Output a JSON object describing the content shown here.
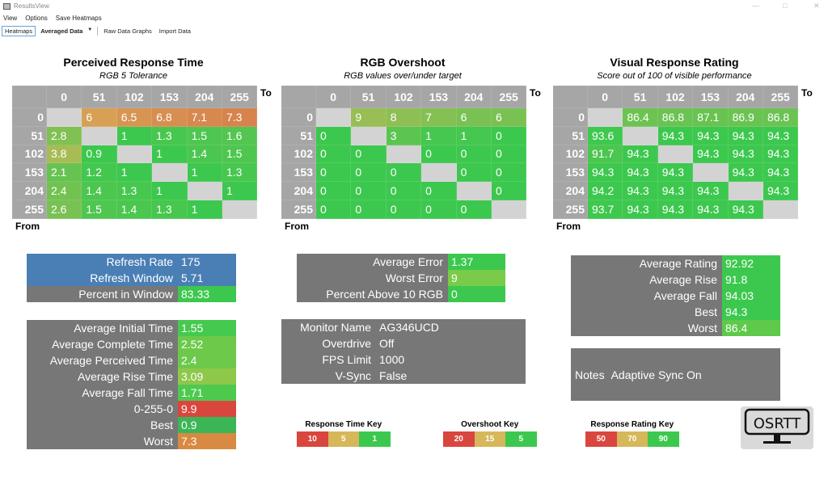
{
  "window": {
    "title": "ResultsView",
    "controls": [
      "—",
      "□",
      "✕"
    ]
  },
  "menu": [
    "View",
    "Options",
    "Save Heatmaps"
  ],
  "toolbar": {
    "heatmaps": "Heatmaps",
    "data_select": "Averaged Data",
    "raw": "Raw Data Graphs",
    "import": "Import Data"
  },
  "axis": {
    "to": "To",
    "from": "From",
    "levels": [
      "0",
      "51",
      "102",
      "153",
      "204",
      "255"
    ]
  },
  "heatmaps": [
    {
      "title": "Perceived Response Time",
      "subtitle": "RGB 5 Tolerance",
      "stops": [
        [
          1,
          "#3cc84e"
        ],
        [
          5,
          "#d6b75a"
        ],
        [
          10,
          "#d9463e"
        ]
      ],
      "values": [
        [
          null,
          "6",
          "6.5",
          "6.8",
          "7.1",
          "7.3"
        ],
        [
          "2.8",
          null,
          "1",
          "1.3",
          "1.5",
          "1.6"
        ],
        [
          "3.8",
          "0.9",
          null,
          "1",
          "1.4",
          "1.5"
        ],
        [
          "2.1",
          "1.2",
          "1",
          null,
          "1",
          "1.3"
        ],
        [
          "2.4",
          "1.4",
          "1.3",
          "1",
          null,
          "1"
        ],
        [
          "2.6",
          "1.5",
          "1.4",
          "1.3",
          "1",
          null
        ]
      ]
    },
    {
      "title": "RGB Overshoot",
      "subtitle": "RGB values over/under target",
      "stops": [
        [
          0,
          "#3cc84e"
        ],
        [
          15,
          "#d6b75a"
        ],
        [
          20,
          "#d9463e"
        ]
      ],
      "values": [
        [
          null,
          "9",
          "8",
          "7",
          "6",
          "6"
        ],
        [
          "0",
          null,
          "3",
          "1",
          "1",
          "0"
        ],
        [
          "0",
          "0",
          null,
          "0",
          "0",
          "0"
        ],
        [
          "0",
          "0",
          "0",
          null,
          "0",
          "0"
        ],
        [
          "0",
          "0",
          "0",
          "0",
          null,
          "0"
        ],
        [
          "0",
          "0",
          "0",
          "0",
          "0",
          null
        ]
      ]
    },
    {
      "title": "Visual Response Rating",
      "subtitle": "Score out of 100 of visible performance",
      "stops": [
        [
          50,
          "#d9463e"
        ],
        [
          70,
          "#d6b75a"
        ],
        [
          94,
          "#3cc84e"
        ]
      ],
      "values": [
        [
          null,
          "86.4",
          "86.8",
          "87.1",
          "86.9",
          "86.8"
        ],
        [
          "93.6",
          null,
          "94.3",
          "94.3",
          "94.3",
          "94.3"
        ],
        [
          "91.7",
          "94.3",
          null,
          "94.3",
          "94.3",
          "94.3"
        ],
        [
          "94.3",
          "94.3",
          "94.3",
          null,
          "94.3",
          "94.3"
        ],
        [
          "94.2",
          "94.3",
          "94.3",
          "94.3",
          null,
          "94.3"
        ],
        [
          "93.7",
          "94.3",
          "94.3",
          "94.3",
          "94.3",
          null
        ]
      ]
    }
  ],
  "refresh": [
    {
      "label": "Refresh Rate",
      "value": "175",
      "label_color": "#4a7fb5",
      "value_color": "#4a7fb5"
    },
    {
      "label": "Refresh Window",
      "value": "5.71",
      "label_color": "#4a7fb5",
      "value_color": "#4a7fb5"
    },
    {
      "label": "Percent in Window",
      "value": "83.33",
      "label_color": "#777777",
      "value_color": "#3cc84e"
    }
  ],
  "response_stats": [
    {
      "label": "Average Initial Time",
      "value": "1.55",
      "value_color": "#45c94e"
    },
    {
      "label": "Average Complete Time",
      "value": "2.52",
      "value_color": "#6cc94a"
    },
    {
      "label": "Average Perceived Time",
      "value": "2.4",
      "value_color": "#6cc94a"
    },
    {
      "label": "Average Rise Time",
      "value": "3.09",
      "value_color": "#8ec84a"
    },
    {
      "label": "Average Fall Time",
      "value": "1.71",
      "value_color": "#4ec94e"
    },
    {
      "label": "0-255-0",
      "value": "9.9",
      "value_color": "#d9463e"
    },
    {
      "label": "Best",
      "value": "0.9",
      "value_color": "#3bb556"
    },
    {
      "label": "Worst",
      "value": "7.3",
      "value_color": "#d88a42"
    }
  ],
  "error_stats": [
    {
      "label": "Average Error",
      "value": "1.37",
      "value_color": "#3cc84e"
    },
    {
      "label": "Worst Error",
      "value": "9",
      "value_color": "#7acb4a"
    },
    {
      "label": "Percent Above 10 RGB",
      "value": "0",
      "value_color": "#3cc84e"
    }
  ],
  "monitor": [
    {
      "label": "Monitor Name",
      "value": "AG346UCD"
    },
    {
      "label": "Overdrive",
      "value": "Off"
    },
    {
      "label": "FPS Limit",
      "value": "1000"
    },
    {
      "label": "V-Sync",
      "value": "False"
    }
  ],
  "rating_stats": [
    {
      "label": "Average Rating",
      "value": "92.92",
      "value_color": "#3cc84e"
    },
    {
      "label": "Average Rise",
      "value": "91.8",
      "value_color": "#3cc84e"
    },
    {
      "label": "Average Fall",
      "value": "94.03",
      "value_color": "#3cc84e"
    },
    {
      "label": "Best",
      "value": "94.3",
      "value_color": "#3cc84e"
    },
    {
      "label": "Worst",
      "value": "86.4",
      "value_color": "#5ec94a"
    }
  ],
  "notes": {
    "label": "Notes",
    "value": "Adaptive Sync On"
  },
  "keys": [
    {
      "title": "Response Time Key",
      "values": [
        "10",
        "5",
        "1"
      ]
    },
    {
      "title": "Overshoot Key",
      "values": [
        "20",
        "15",
        "5"
      ]
    },
    {
      "title": "Response Rating Key",
      "values": [
        "50",
        "70",
        "90"
      ]
    }
  ],
  "key_colors": [
    "#d9463e",
    "#d6b75a",
    "#3cc84e"
  ],
  "logo": "OSRTT"
}
